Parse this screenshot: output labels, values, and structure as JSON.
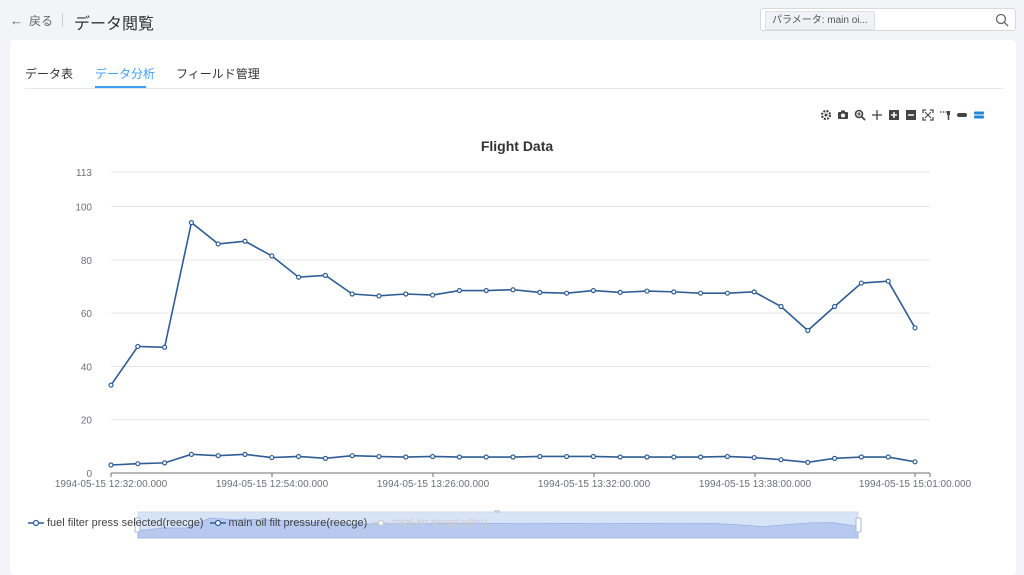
{
  "header": {
    "back_label": "戻る",
    "title": "データ閲覧",
    "search_chip": "パラメータ: main oi..."
  },
  "tabs": [
    {
      "label": "データ表"
    },
    {
      "label": "データ分析"
    },
    {
      "label": "フィールド管理"
    }
  ],
  "toolbox": [
    "gear-icon",
    "camera-icon",
    "zoom-icon",
    "move-icon",
    "plus-icon",
    "minus-icon",
    "restore-icon",
    "brush-icon",
    "clear-icon",
    "layers-icon"
  ],
  "colors": {
    "series": "#2f5d93",
    "accent": "#409eff",
    "disabled": "#cccccc"
  },
  "chart_data": {
    "type": "line",
    "title": "Flight Data",
    "ylim": [
      0,
      113
    ],
    "yticks": [
      0,
      20,
      40,
      60,
      80,
      100,
      113
    ],
    "xticks": [
      "1994-05-15 12:32:00.000",
      "1994-05-15 12:54:00.000",
      "1994-05-15 13:26:00.000",
      "1994-05-15 13:32:00.000",
      "1994-05-15 13:38:00.000",
      "1994-05-15 15:01:00.000"
    ],
    "grid": true,
    "legend_position": "bottom-left",
    "series": [
      {
        "name": "fuel filter press selected(reecge)",
        "visible": true,
        "values": [
          3,
          3.5,
          3.8,
          7,
          6.5,
          7,
          5.8,
          6.2,
          5.5,
          6.5,
          6.2,
          6,
          6.2,
          6,
          6,
          6,
          6.2,
          6.2,
          6.2,
          6,
          6,
          6,
          6,
          6.2,
          5.8,
          5,
          4,
          5.5,
          6,
          6,
          4.2
        ]
      },
      {
        "name": "main oil filt pressure(reecge)",
        "visible": true,
        "values": [
          33,
          47.5,
          47.2,
          94,
          86,
          87,
          81.5,
          73.5,
          74.2,
          67.2,
          66.5,
          67.2,
          66.8,
          68.5,
          68.5,
          68.8,
          67.8,
          67.5,
          68.5,
          67.8,
          68.3,
          68,
          67.5,
          67.5,
          68,
          62.5,
          53.5,
          62.5,
          71.3,
          72,
          54.5
        ]
      },
      {
        "name": "total air temp(adiru)",
        "visible": false,
        "values": []
      }
    ]
  }
}
